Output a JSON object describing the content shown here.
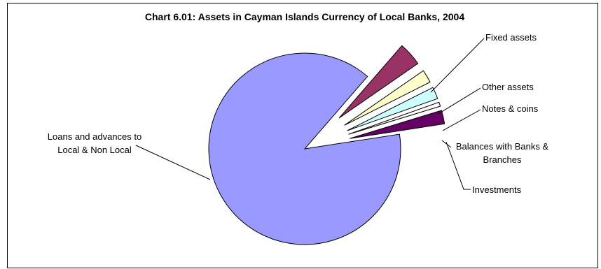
{
  "chart_data": {
    "type": "pie",
    "title": "Chart 6.01: Assets in Cayman Islands Currency of Local Banks, 2004",
    "slices": [
      {
        "label": "Loans and advances to\nLocal & Non Local",
        "value": 88.8,
        "color": "#9999ff",
        "exploded": false
      },
      {
        "label": "Fixed assets",
        "value": 4.0,
        "color": "#993366",
        "exploded": true
      },
      {
        "label": "Other assets",
        "value": 2.2,
        "color": "#ffffcc",
        "exploded": true
      },
      {
        "label": "Notes & coins",
        "value": 2.0,
        "color": "#ccffff",
        "exploded": true
      },
      {
        "label": "Balances with Banks &\nBranches",
        "value": 0.7,
        "color": "#ffffff",
        "exploded": true
      },
      {
        "label": "Investments",
        "value": 2.3,
        "color": "#660066",
        "exploded": true
      }
    ]
  }
}
